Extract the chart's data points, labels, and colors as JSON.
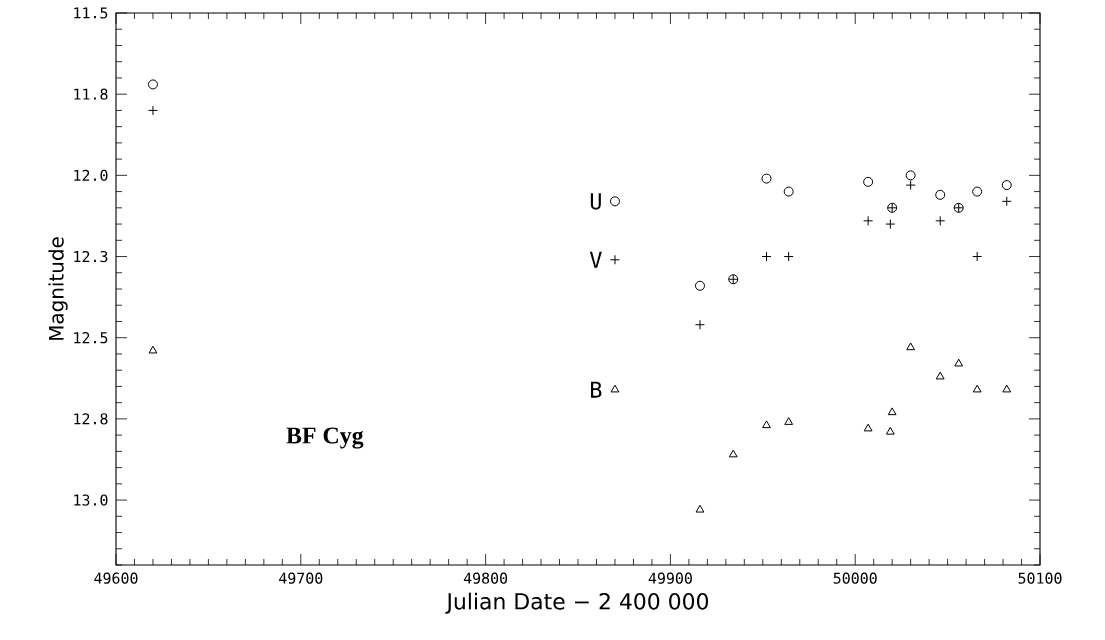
{
  "chart_data": {
    "type": "scatter",
    "title": "BF Cyg",
    "xlabel": "Julian Date − 2 400 000",
    "ylabel": "Magnitude",
    "xlim": [
      49600,
      50100
    ],
    "ylim": [
      13.2,
      11.5
    ],
    "xticks": [
      49600,
      {
        "value": 49610,
        "label": null
      },
      {
        "value": 49620,
        "label": null
      },
      {
        "value": 49630,
        "label": null
      },
      {
        "value": 49640,
        "label": null
      },
      {
        "value": 49650,
        "label": null
      },
      {
        "value": 49660,
        "label": null
      },
      {
        "value": 49670,
        "label": null
      },
      {
        "value": 49680,
        "label": null
      },
      {
        "value": 49690,
        "label": null
      },
      49700,
      {
        "value": 49710,
        "label": null
      },
      {
        "value": 49720,
        "label": null
      },
      {
        "value": 49730,
        "label": null
      },
      {
        "value": 49740,
        "label": null
      },
      {
        "value": 49750,
        "label": null
      },
      {
        "value": 49760,
        "label": null
      },
      {
        "value": 49770,
        "label": null
      },
      {
        "value": 49780,
        "label": null
      },
      {
        "value": 49790,
        "label": null
      },
      49800,
      {
        "value": 49810,
        "label": null
      },
      {
        "value": 49820,
        "label": null
      },
      {
        "value": 49830,
        "label": null
      },
      {
        "value": 49840,
        "label": null
      },
      {
        "value": 49850,
        "label": null
      },
      {
        "value": 49860,
        "label": null
      },
      {
        "value": 49870,
        "label": null
      },
      {
        "value": 49880,
        "label": null
      },
      {
        "value": 49890,
        "label": null
      },
      49900,
      {
        "value": 49910,
        "label": null
      },
      {
        "value": 49920,
        "label": null
      },
      {
        "value": 49930,
        "label": null
      },
      {
        "value": 49940,
        "label": null
      },
      {
        "value": 49950,
        "label": null
      },
      {
        "value": 49960,
        "label": null
      },
      {
        "value": 49970,
        "label": null
      },
      {
        "value": 49980,
        "label": null
      },
      {
        "value": 49990,
        "label": null
      },
      50000,
      {
        "value": 50010,
        "label": null
      },
      {
        "value": 50020,
        "label": null
      },
      {
        "value": 50030,
        "label": null
      },
      {
        "value": 50040,
        "label": null
      },
      {
        "value": 50050,
        "label": null
      },
      {
        "value": 50060,
        "label": null
      },
      {
        "value": 50070,
        "label": null
      },
      {
        "value": 50080,
        "label": null
      },
      {
        "value": 50090,
        "label": null
      },
      50100
    ],
    "yticks": [
      11.5,
      {
        "value": 11.55,
        "label": null
      },
      {
        "value": 11.6,
        "label": null
      },
      {
        "value": 11.65,
        "label": null
      },
      {
        "value": 11.7,
        "label": null
      },
      {
        "value": 11.75,
        "label": "11.8"
      },
      {
        "value": 11.8,
        "label": null
      },
      {
        "value": 11.85,
        "label": null
      },
      {
        "value": 11.9,
        "label": null
      },
      {
        "value": 11.95,
        "label": null
      },
      {
        "value": 12.0,
        "label": "12.0"
      },
      {
        "value": 12.05,
        "label": null
      },
      {
        "value": 12.1,
        "label": null
      },
      {
        "value": 12.15,
        "label": null
      },
      {
        "value": 12.2,
        "label": null
      },
      {
        "value": 12.25,
        "label": "12.3"
      },
      {
        "value": 12.3,
        "label": null
      },
      {
        "value": 12.35,
        "label": null
      },
      {
        "value": 12.4,
        "label": null
      },
      {
        "value": 12.45,
        "label": null
      },
      12.5,
      {
        "value": 12.55,
        "label": null
      },
      {
        "value": 12.6,
        "label": null
      },
      {
        "value": 12.65,
        "label": null
      },
      {
        "value": 12.7,
        "label": null
      },
      {
        "value": 12.75,
        "label": "12.8"
      },
      {
        "value": 12.8,
        "label": null
      },
      {
        "value": 12.85,
        "label": null
      },
      {
        "value": 12.9,
        "label": null
      },
      {
        "value": 12.95,
        "label": null
      },
      {
        "value": 13.0,
        "label": "13.0"
      },
      {
        "value": 13.05,
        "label": null
      },
      {
        "value": 13.1,
        "label": null
      },
      {
        "value": 13.15,
        "label": null
      },
      {
        "value": 13.2,
        "label": null
      }
    ],
    "series": [
      {
        "name": "U",
        "color": "#000000",
        "marker": "circle",
        "x": [
          49620,
          49870,
          49916,
          49934,
          49952,
          49964,
          50007,
          50020,
          50030,
          50046,
          50056,
          50066,
          50082
        ],
        "values": [
          11.72,
          12.08,
          12.34,
          12.32,
          12.01,
          12.05,
          12.02,
          12.1,
          12.0,
          12.06,
          12.1,
          12.05,
          12.03
        ]
      },
      {
        "name": "V",
        "color": "#000000",
        "marker": "cross",
        "x": [
          49620,
          49870,
          49916,
          49934,
          49952,
          49964,
          50007,
          50019,
          50020,
          50030,
          50046,
          50056,
          50066,
          50082
        ],
        "values": [
          11.8,
          12.26,
          12.46,
          12.32,
          12.25,
          12.25,
          12.14,
          12.15,
          12.1,
          12.03,
          12.14,
          12.1,
          12.25,
          12.08
        ]
      },
      {
        "name": "B",
        "color": "#000000",
        "marker": "triangle",
        "x": [
          49620,
          49870,
          49916,
          49934,
          49952,
          49964,
          50007,
          50019,
          50020,
          50030,
          50046,
          50056,
          50066,
          50082
        ],
        "values": [
          12.54,
          12.66,
          13.03,
          12.86,
          12.77,
          12.76,
          12.78,
          12.79,
          12.73,
          12.53,
          12.62,
          12.58,
          12.66,
          12.66
        ]
      }
    ]
  }
}
